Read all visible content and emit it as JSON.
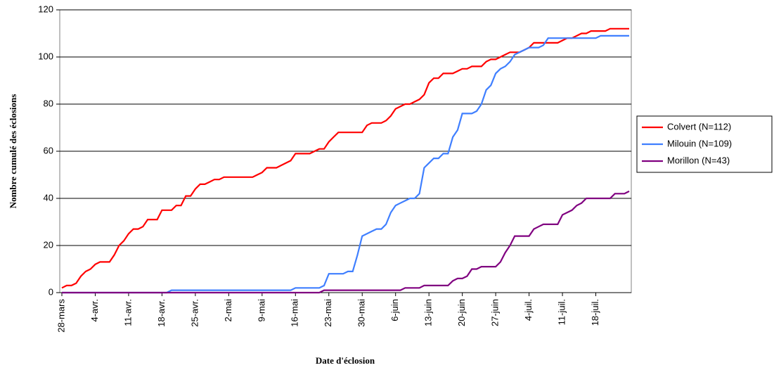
{
  "chart_data": {
    "type": "line",
    "y_label": "Nombre cumulé des éclosions",
    "x_label": "Date d'éclosion",
    "categories": [
      "28-mars",
      null,
      null,
      null,
      null,
      null,
      null,
      "4-avr.",
      null,
      null,
      null,
      null,
      null,
      null,
      "11-avr.",
      null,
      null,
      null,
      null,
      null,
      null,
      "18-avr.",
      null,
      null,
      null,
      null,
      null,
      null,
      "25-avr.",
      null,
      null,
      null,
      null,
      null,
      null,
      "2-mai",
      null,
      null,
      null,
      null,
      null,
      null,
      "9-mai",
      null,
      null,
      null,
      null,
      null,
      null,
      "16-mai",
      null,
      null,
      null,
      null,
      null,
      null,
      "23-mai",
      null,
      null,
      null,
      null,
      null,
      null,
      "30-mai",
      null,
      null,
      null,
      null,
      null,
      null,
      "6-juin",
      null,
      null,
      null,
      null,
      null,
      null,
      "13-juin",
      null,
      null,
      null,
      null,
      null,
      null,
      "20-juin",
      null,
      null,
      null,
      null,
      null,
      null,
      "27-juin",
      null,
      null,
      null,
      null,
      null,
      null,
      "4-juil.",
      null,
      null,
      null,
      null,
      null,
      null,
      "11-juil.",
      null,
      null,
      null,
      null,
      null,
      null,
      "18-juil.",
      null,
      null,
      null,
      null,
      null,
      null,
      null
    ],
    "series": [
      {
        "name": "Colvert (N=112)",
        "color": "#ff0000",
        "values": [
          2,
          3,
          3,
          4,
          7,
          9,
          10,
          12,
          13,
          13,
          13,
          16,
          20,
          22,
          25,
          27,
          27,
          28,
          31,
          31,
          31,
          35,
          35,
          35,
          37,
          37,
          41,
          41,
          44,
          46,
          46,
          47,
          48,
          48,
          49,
          49,
          49,
          49,
          49,
          49,
          49,
          50,
          51,
          53,
          53,
          53,
          54,
          55,
          56,
          59,
          59,
          59,
          59,
          60,
          61,
          61,
          64,
          66,
          68,
          68,
          68,
          68,
          68,
          68,
          71,
          72,
          72,
          72,
          73,
          75,
          78,
          79,
          80,
          80,
          81,
          82,
          84,
          89,
          91,
          91,
          93,
          93,
          93,
          94,
          95,
          95,
          96,
          96,
          96,
          98,
          99,
          99,
          100,
          101,
          102,
          102,
          102,
          103,
          104,
          106,
          106,
          106,
          106,
          106,
          106,
          107,
          108,
          108,
          109,
          110,
          110,
          111,
          111,
          111,
          111,
          112,
          112,
          112,
          112,
          112
        ]
      },
      {
        "name": "Milouin (N=109)",
        "color": "#3f7fff",
        "values": [
          0,
          0,
          0,
          0,
          0,
          0,
          0,
          0,
          0,
          0,
          0,
          0,
          0,
          0,
          0,
          0,
          0,
          0,
          0,
          0,
          0,
          0,
          0,
          1,
          1,
          1,
          1,
          1,
          1,
          1,
          1,
          1,
          1,
          1,
          1,
          1,
          1,
          1,
          1,
          1,
          1,
          1,
          1,
          1,
          1,
          1,
          1,
          1,
          1,
          2,
          2,
          2,
          2,
          2,
          2,
          3,
          8,
          8,
          8,
          8,
          9,
          9,
          16,
          24,
          25,
          26,
          27,
          27,
          29,
          34,
          37,
          38,
          39,
          40,
          40,
          42,
          53,
          55,
          57,
          57,
          59,
          59,
          66,
          69,
          76,
          76,
          76,
          77,
          80,
          86,
          88,
          93,
          95,
          96,
          98,
          101,
          102,
          103,
          104,
          104,
          104,
          105,
          108,
          108,
          108,
          108,
          108,
          108,
          108,
          108,
          108,
          108,
          108,
          109,
          109,
          109,
          109,
          109,
          109,
          109
        ]
      },
      {
        "name": "Morillon (N=43)",
        "color": "#800080",
        "values": [
          0,
          0,
          0,
          0,
          0,
          0,
          0,
          0,
          0,
          0,
          0,
          0,
          0,
          0,
          0,
          0,
          0,
          0,
          0,
          0,
          0,
          0,
          0,
          0,
          0,
          0,
          0,
          0,
          0,
          0,
          0,
          0,
          0,
          0,
          0,
          0,
          0,
          0,
          0,
          0,
          0,
          0,
          0,
          0,
          0,
          0,
          0,
          0,
          0,
          0,
          0,
          0,
          0,
          0,
          0,
          1,
          1,
          1,
          1,
          1,
          1,
          1,
          1,
          1,
          1,
          1,
          1,
          1,
          1,
          1,
          1,
          1,
          2,
          2,
          2,
          2,
          3,
          3,
          3,
          3,
          3,
          3,
          5,
          6,
          6,
          7,
          10,
          10,
          11,
          11,
          11,
          11,
          13,
          17,
          20,
          24,
          24,
          24,
          24,
          27,
          28,
          29,
          29,
          29,
          29,
          33,
          34,
          35,
          37,
          38,
          40,
          40,
          40,
          40,
          40,
          40,
          42,
          42,
          42,
          43
        ]
      }
    ],
    "ylim": [
      0,
      120
    ],
    "yticks": [
      0,
      20,
      40,
      60,
      80,
      100,
      120
    ],
    "grid": true,
    "legend": "right"
  }
}
